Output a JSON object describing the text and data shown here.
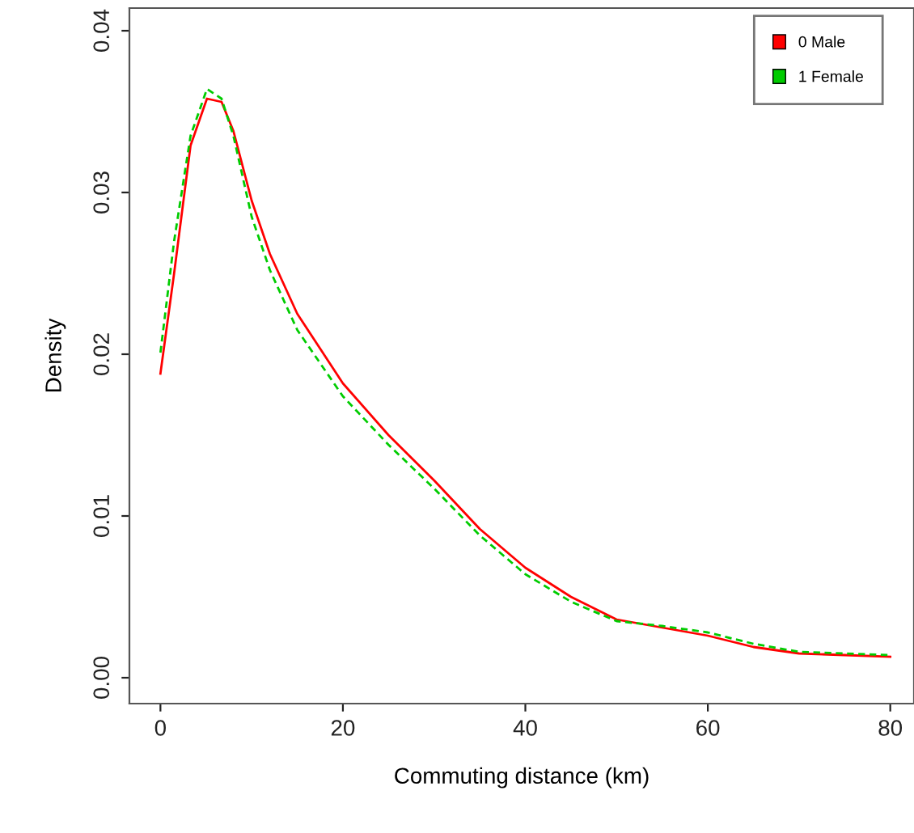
{
  "chart_data": {
    "type": "line",
    "xlabel": "Commuting distance (km)",
    "ylabel": "Density",
    "xlim": [
      -3.4,
      82.6
    ],
    "ylim": [
      -0.0016,
      0.0414
    ],
    "xticks": [
      0,
      20,
      40,
      60,
      80
    ],
    "yticks": [
      {
        "value": 0,
        "label": "0.00"
      },
      {
        "value": 0.01,
        "label": "0.01"
      },
      {
        "value": 0.02,
        "label": "0.02"
      },
      {
        "value": 0.03,
        "label": "0.03"
      },
      {
        "value": 0.04,
        "label": "0.04"
      }
    ],
    "grid": false,
    "legend": "top right",
    "marker": "none",
    "x": [
      0,
      1.5,
      3.3,
      5.1,
      6.7,
      8,
      10,
      12,
      15,
      20,
      25,
      30,
      35,
      40,
      45,
      50,
      55,
      60,
      65,
      70,
      75,
      80
    ],
    "series": [
      {
        "name": "0 Male",
        "color": "#ff0000",
        "line_style": "solid",
        "values": [
          0.0188,
          0.025,
          0.0329,
          0.0358,
          0.0356,
          0.0338,
          0.0295,
          0.0262,
          0.0225,
          0.0182,
          0.015,
          0.0122,
          0.0092,
          0.0068,
          0.005,
          0.0036,
          0.0031,
          0.0026,
          0.0019,
          0.0015,
          0.0014,
          0.0013
        ]
      },
      {
        "name": "1 Female",
        "color": "#00cc00",
        "line_style": "dashed",
        "values": [
          0.0201,
          0.027,
          0.0335,
          0.0364,
          0.0358,
          0.0335,
          0.0285,
          0.0252,
          0.0215,
          0.0174,
          0.0144,
          0.0117,
          0.0088,
          0.0064,
          0.0047,
          0.0035,
          0.0032,
          0.0028,
          0.0021,
          0.0016,
          0.0015,
          0.0014
        ]
      }
    ]
  }
}
